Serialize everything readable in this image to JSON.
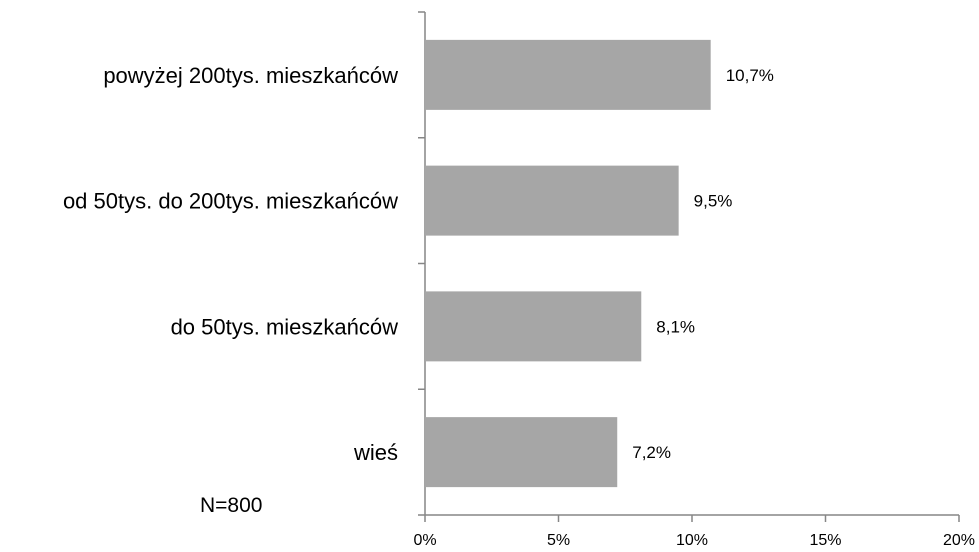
{
  "chart_data": {
    "type": "bar",
    "orientation": "horizontal",
    "categories": [
      "powyżej 200tys. mieszkańców",
      "od 50tys. do 200tys. mieszkańców",
      "do 50tys. mieszkańców",
      "wieś"
    ],
    "values": [
      10.7,
      9.5,
      8.1,
      7.2
    ],
    "value_labels": [
      "10,7%",
      "9,5%",
      "8,1%",
      "7,2%"
    ],
    "x_ticks": [
      "0%",
      "5%",
      "10%",
      "15%",
      "20%"
    ],
    "xlim": [
      0,
      20
    ],
    "bar_color": "#a6a6a6",
    "grid": false,
    "legend": "none",
    "title": "",
    "xlabel": "",
    "ylabel": ""
  },
  "note": "N=800"
}
